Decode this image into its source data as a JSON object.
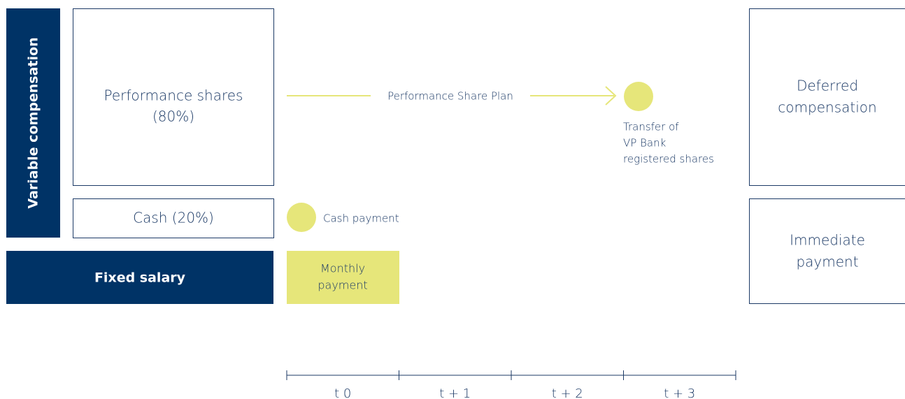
{
  "sidebar_label": "Variable compensation",
  "boxes": {
    "performance_shares": [
      "Performance shares",
      "(80%)"
    ],
    "cash": [
      "Cash (20%)"
    ],
    "fixed_salary": [
      "Fixed salary"
    ],
    "monthly_payment": [
      "Monthly",
      "payment"
    ],
    "deferred": [
      "Deferred",
      "compensation"
    ],
    "immediate": [
      "Immediate",
      "payment"
    ]
  },
  "flows": {
    "plan_label": "Performance Share Plan",
    "transfer": [
      "Transfer of",
      "VP Bank",
      "registered shares"
    ],
    "cash_payment": "Cash payment"
  },
  "timeline": [
    "t 0",
    "t + 1",
    "t + 2",
    "t + 3"
  ]
}
